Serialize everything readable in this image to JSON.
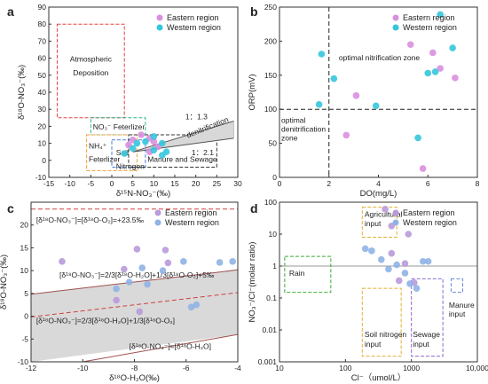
{
  "colors": {
    "eastern": "#d98fe0",
    "western": "#35c6dc",
    "eastern_c": "#b99ad9",
    "western_c": "#8fb3e6"
  },
  "chart_data": [
    {
      "panel": "a",
      "type": "scatter",
      "xlabel": "δ¹⁵N-NO₃⁻(‰)",
      "ylabel": "δ¹⁸O-NO₃⁻(‰)",
      "xlim": [
        -15,
        30
      ],
      "ylim": [
        -10,
        90
      ],
      "xticks": [
        "-15",
        "-10",
        "-5",
        "0",
        "5",
        "10",
        "15",
        "20",
        "25",
        "30"
      ],
      "yticks": [
        "-10",
        "0",
        "10",
        "20",
        "30",
        "40",
        "50",
        "60",
        "70",
        "80",
        "90"
      ],
      "legend": [
        "Eastern region",
        "Western region"
      ],
      "series": [
        {
          "name": "Eastern region",
          "points": [
            [
              4,
              9
            ],
            [
              5,
              12
            ],
            [
              7,
              15
            ],
            [
              9,
              13
            ],
            [
              10,
              11
            ],
            [
              11,
              8
            ],
            [
              9,
              5
            ]
          ]
        },
        {
          "name": "Western region",
          "points": [
            [
              3,
              4
            ],
            [
              5,
              7
            ],
            [
              6,
              10
            ],
            [
              8,
              11
            ],
            [
              10,
              6
            ],
            [
              10,
              14
            ],
            [
              12,
              10
            ],
            [
              12,
              3
            ],
            [
              13,
              5
            ]
          ]
        }
      ],
      "boxes": [
        {
          "label": "Atmospheric Deposition",
          "x": [
            -13,
            3
          ],
          "y": [
            25,
            80
          ],
          "color": "#e64545"
        },
        {
          "label": "NO₃⁻ Feterlizer",
          "x": [
            -5,
            8
          ],
          "y": [
            15,
            25
          ],
          "color": "#2ab78f"
        },
        {
          "label": "NH₄⁺ Feterlizer",
          "x": [
            -6,
            6
          ],
          "y": [
            -6,
            15
          ],
          "color": "#f0a030"
        },
        {
          "label": "Soil Nitrogen",
          "x": [
            0,
            8
          ],
          "y": [
            -4,
            12
          ],
          "color": "#4a80d8"
        },
        {
          "label": "Manure and Sewage",
          "x": [
            4,
            25
          ],
          "y": [
            -4,
            15
          ],
          "color": "#333333"
        }
      ],
      "annotations": [
        "denitrification",
        "1：1.3",
        "1：2.1"
      ]
    },
    {
      "panel": "b",
      "type": "scatter",
      "xlabel": "DO(mg/L)",
      "ylabel": "ORP(mV)",
      "xlim": [
        0,
        8
      ],
      "ylim": [
        0,
        250
      ],
      "xticks": [
        "0",
        "2",
        "4",
        "6",
        "8"
      ],
      "yticks": [
        "0",
        "50",
        "100",
        "150",
        "200",
        "250"
      ],
      "legend": [
        "Eastern region",
        "Western region"
      ],
      "series": [
        {
          "name": "Eastern region",
          "points": [
            [
              2.7,
              62
            ],
            [
              3.1,
              120
            ],
            [
              5.3,
              195
            ],
            [
              5.8,
              13
            ],
            [
              6.2,
              183
            ],
            [
              6.5,
              160
            ],
            [
              7.1,
              146
            ]
          ]
        },
        {
          "name": "Western region",
          "points": [
            [
              1.6,
              107
            ],
            [
              1.7,
              181
            ],
            [
              2.2,
              145
            ],
            [
              3.9,
              105
            ],
            [
              5.6,
              58
            ],
            [
              6.0,
              153
            ],
            [
              6.3,
              155
            ],
            [
              6.5,
              239
            ],
            [
              7.0,
              190
            ]
          ]
        }
      ],
      "reference_lines": {
        "x": 2,
        "y": 100
      },
      "annotations": [
        "optimal nitrification zone",
        "optimal denitrification zone"
      ]
    },
    {
      "panel": "c",
      "type": "scatter",
      "xlabel": "δ¹⁸O-H₂O(‰)",
      "ylabel": "δ¹⁸O-NO₃⁻(‰)",
      "xlim": [
        -12,
        -4
      ],
      "ylim": [
        -10,
        25
      ],
      "xticks": [
        "-12",
        "-10",
        "-8",
        "-6",
        "-4"
      ],
      "yticks": [
        "-10",
        "-5",
        "0",
        "5",
        "10",
        "15",
        "20"
      ],
      "legend": [
        "Eastern region",
        "Western region"
      ],
      "series": [
        {
          "name": "Eastern region",
          "points": [
            [
              -10.8,
              12
            ],
            [
              -8.7,
              3.5
            ],
            [
              -8.4,
              10.3
            ],
            [
              -7.9,
              14.7
            ],
            [
              -6.8,
              14.5
            ],
            [
              -6.7,
              11.7
            ],
            [
              -7.8,
              1
            ]
          ]
        },
        {
          "name": "Western region",
          "points": [
            [
              -8.7,
              6
            ],
            [
              -8.2,
              7.5
            ],
            [
              -7.7,
              10.6
            ],
            [
              -7.5,
              7
            ],
            [
              -6.9,
              10
            ],
            [
              -6.1,
              12
            ],
            [
              -5.8,
              2
            ],
            [
              -5.6,
              2.5
            ],
            [
              -4.7,
              11.8
            ],
            [
              -4.2,
              12
            ]
          ]
        }
      ],
      "lines": [
        {
          "label": "[δ¹⁸O-NO₃⁻]=[δ¹⁸O-O₂]=+23.5‰",
          "slope": 0,
          "intercept": 23.5,
          "color": "#d04040",
          "dash": true
        },
        {
          "label": "[δ¹⁸O-NO₃⁻]=2/3[δ¹⁸O-H₂O]+1/3[δ¹⁸O-O₂]+5‰",
          "slope": 0.6667,
          "intercept": 12.833,
          "color": "#a05050",
          "dash": false
        },
        {
          "label": "[δ¹⁸O-NO₃⁻]=2/3[δ¹⁸O-H₂O]+1/3[δ¹⁸O-O₂]",
          "slope": 0.6667,
          "intercept": 7.833,
          "color": "#d04040",
          "dash": true
        },
        {
          "label": "[δ¹⁸O-NO₃⁻]=[δ¹⁸O-H₂O]",
          "slope": 1,
          "intercept": 0,
          "color": "#a05050",
          "dash": false
        }
      ]
    },
    {
      "panel": "d",
      "type": "scatter",
      "xlabel": "Cl⁻（umol/L）",
      "ylabel": "NO₃⁻/Cl⁻(molar ratio)",
      "xscale": "log",
      "yscale": "log",
      "xlim": [
        10,
        10000
      ],
      "ylim": [
        0.001,
        100
      ],
      "xticks": [
        "10",
        "100",
        "1000",
        "10,000"
      ],
      "yticks": [
        "0.001",
        "0.01",
        "0.1",
        "1",
        "10",
        "100"
      ],
      "legend": [
        "Eastern region",
        "Western region"
      ],
      "series": [
        {
          "name": "Eastern region",
          "points": [
            [
              400,
              60
            ],
            [
              500,
              18
            ],
            [
              900,
              10
            ],
            [
              500,
              2.5
            ],
            [
              800,
              1.2
            ],
            [
              650,
              0.35
            ],
            [
              1100,
              0.3
            ]
          ]
        },
        {
          "name": "Western region",
          "points": [
            [
              200,
              3.5
            ],
            [
              250,
              3
            ],
            [
              350,
              1.6
            ],
            [
              450,
              0.8
            ],
            [
              600,
              1.1
            ],
            [
              800,
              0.6
            ],
            [
              950,
              0.28
            ],
            [
              1200,
              0.2
            ],
            [
              1500,
              1.4
            ],
            [
              1800,
              1.4
            ]
          ]
        }
      ],
      "reference_line": {
        "y": 1
      },
      "boxes": [
        {
          "label": "Rain",
          "x": [
            12,
            60
          ],
          "y": [
            0.15,
            2
          ],
          "color": "#3aaa3a"
        },
        {
          "label": "Agricultural input",
          "x": [
            180,
            600
          ],
          "y": [
            8,
            70
          ],
          "color": "#e0b030"
        },
        {
          "label": "Soil nitrogen input",
          "x": [
            180,
            700
          ],
          "y": [
            0.0015,
            0.2
          ],
          "color": "#e0b030"
        },
        {
          "label": "Sewage input",
          "x": [
            1000,
            3000
          ],
          "y": [
            0.0015,
            0.4
          ],
          "color": "#8a6ad0"
        },
        {
          "label": "Manure input",
          "x": [
            4000,
            6000
          ],
          "y": [
            0.15,
            0.4
          ],
          "color": "#6a8ad8"
        }
      ]
    }
  ]
}
